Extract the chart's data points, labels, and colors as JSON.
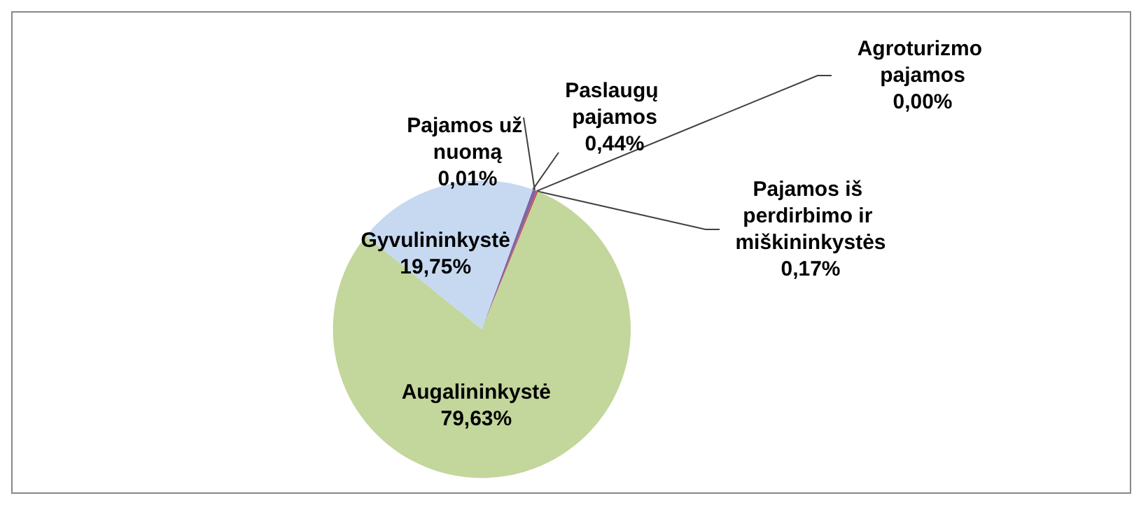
{
  "chart_data": {
    "type": "pie",
    "categories": [
      "Pajamos už nuomą",
      "Paslaugų pajamos",
      "Agroturizmo pajamos",
      "Pajamos iš perdirbimo ir miškininkystės",
      "Augalininkystė",
      "Gyvulininkystė"
    ],
    "values": [
      0.01,
      0.44,
      0.0,
      0.17,
      79.63,
      19.75
    ],
    "value_labels": [
      "0,01%",
      "0,44%",
      "0,00%",
      "0,17%",
      "79,63%",
      "19,75%"
    ],
    "colors": [
      "#4f81bd",
      "#8064a2",
      "#9bbb59",
      "#c0504d",
      "#c3d69b",
      "#c6d9f1"
    ],
    "legend": false
  }
}
